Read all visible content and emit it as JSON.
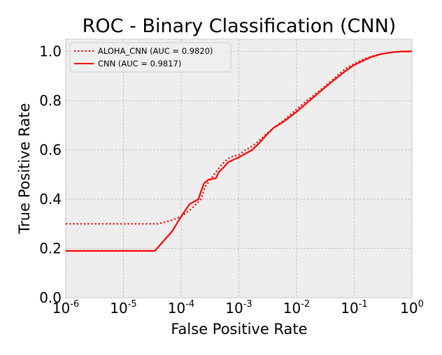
{
  "chart_data": {
    "type": "line",
    "title": "ROC - Binary Classification (CNN)",
    "xlabel": "False Positive Rate",
    "ylabel": "True Positive Rate",
    "xscale": "log",
    "xlim": [
      1e-06,
      1
    ],
    "ylim": [
      0,
      1.05
    ],
    "x_ticks": [
      {
        "value": 1e-06,
        "base": "10",
        "exp": "-6"
      },
      {
        "value": 1e-05,
        "base": "10",
        "exp": "-5"
      },
      {
        "value": 0.0001,
        "base": "10",
        "exp": "-4"
      },
      {
        "value": 0.001,
        "base": "10",
        "exp": "-3"
      },
      {
        "value": 0.01,
        "base": "10",
        "exp": "-2"
      },
      {
        "value": 0.1,
        "base": "10",
        "exp": "-1"
      },
      {
        "value": 1,
        "base": "10",
        "exp": "0"
      }
    ],
    "y_ticks": [
      {
        "value": 0.0,
        "label": "0.0"
      },
      {
        "value": 0.2,
        "label": "0.2"
      },
      {
        "value": 0.4,
        "label": "0.4"
      },
      {
        "value": 0.6,
        "label": "0.6"
      },
      {
        "value": 0.8,
        "label": "0.8"
      },
      {
        "value": 1.0,
        "label": "1.0"
      }
    ],
    "grid": true,
    "legend_position": "top-left",
    "background_color": "#eeeeee",
    "series": [
      {
        "name": "ALOHA_CNN (AUC = 0.9820)",
        "color": "#ff0000",
        "style": "dotted",
        "x": [
          1e-06,
          1e-05,
          4e-05,
          7e-05,
          0.0001,
          0.00015,
          0.00022,
          0.00026,
          0.00032,
          0.0004,
          0.0005,
          0.00065,
          0.0008,
          0.001,
          0.0013,
          0.0017,
          0.0022,
          0.003,
          0.004,
          0.006,
          0.01,
          0.015,
          0.025,
          0.04,
          0.07,
          0.1,
          0.15,
          0.2,
          0.3,
          0.5,
          0.7,
          1
        ],
        "y": [
          0.3,
          0.3,
          0.3,
          0.315,
          0.33,
          0.36,
          0.4,
          0.45,
          0.48,
          0.51,
          0.54,
          0.565,
          0.575,
          0.58,
          0.6,
          0.615,
          0.635,
          0.665,
          0.69,
          0.72,
          0.765,
          0.8,
          0.84,
          0.88,
          0.93,
          0.95,
          0.97,
          0.98,
          0.99,
          0.998,
          1.0,
          1.0
        ]
      },
      {
        "name": "CNN (AUC = 0.9817)",
        "color": "#ff0000",
        "style": "solid",
        "x": [
          1e-06,
          1e-05,
          3.5e-05,
          7e-05,
          0.0001,
          0.00014,
          0.0002,
          0.00022,
          0.00025,
          0.0003,
          0.0004,
          0.00045,
          0.00055,
          0.00065,
          0.0008,
          0.001,
          0.0013,
          0.0017,
          0.0022,
          0.003,
          0.004,
          0.006,
          0.01,
          0.015,
          0.025,
          0.04,
          0.07,
          0.1,
          0.15,
          0.2,
          0.3,
          0.5,
          0.7,
          1
        ],
        "y": [
          0.19,
          0.19,
          0.19,
          0.27,
          0.33,
          0.38,
          0.4,
          0.43,
          0.465,
          0.48,
          0.485,
          0.51,
          0.53,
          0.55,
          0.56,
          0.57,
          0.585,
          0.6,
          0.625,
          0.66,
          0.69,
          0.715,
          0.755,
          0.79,
          0.835,
          0.875,
          0.92,
          0.945,
          0.965,
          0.978,
          0.99,
          0.998,
          1.0,
          1.0
        ]
      }
    ]
  }
}
